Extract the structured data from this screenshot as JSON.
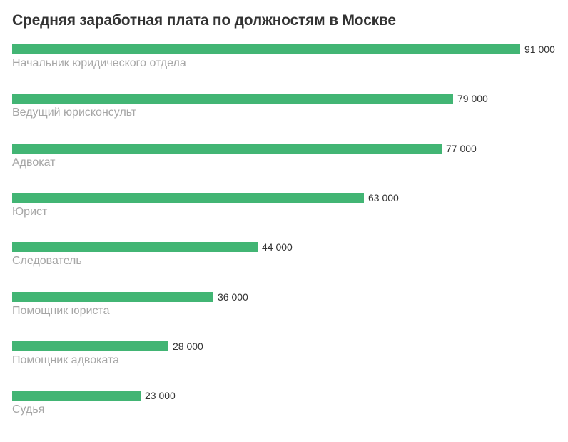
{
  "chart_data": {
    "type": "bar",
    "orientation": "horizontal",
    "title": "Средняя заработная плата по должностям в Москве",
    "categories": [
      "Начальник юридического отдела",
      "Ведущий юрисконсульт",
      "Адвокат",
      "Юрист",
      "Следователь",
      "Помощник юриста",
      "Помощник адвоката",
      "Судья"
    ],
    "values": [
      91000,
      79000,
      77000,
      63000,
      44000,
      36000,
      28000,
      23000
    ],
    "value_labels": [
      "91 000",
      "79 000",
      "77 000",
      "63 000",
      "44 000",
      "36 000",
      "28 000",
      "23 000"
    ],
    "xlim": [
      0,
      91000
    ],
    "grid": false,
    "legend": "none",
    "bar_color": "#42b574"
  }
}
